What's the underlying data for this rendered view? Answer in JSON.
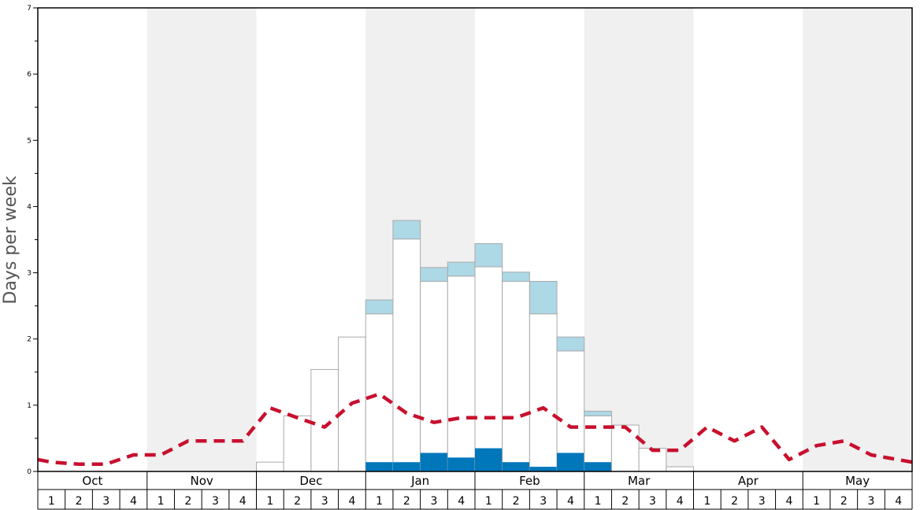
{
  "chart_data": {
    "type": "bar",
    "ylabel": "Days per week",
    "ylim": [
      0,
      7
    ],
    "y_ticks": [
      "0",
      "1",
      "2",
      "3",
      "4",
      "5",
      "6",
      "7"
    ],
    "months": [
      "Oct",
      "Nov",
      "Dec",
      "Jan",
      "Feb",
      "Mar",
      "Apr",
      "May"
    ],
    "week_labels": [
      "1",
      "2",
      "3",
      "4"
    ],
    "shaded_months": [
      "Nov",
      "Jan",
      "Mar",
      "May"
    ],
    "series": [
      {
        "style": "white-bar",
        "values": [
          0,
          0,
          0,
          0,
          0,
          0,
          0,
          0,
          0.14,
          0.84,
          1.54,
          2.03,
          2.38,
          3.51,
          2.87,
          2.95,
          3.09,
          2.87,
          2.38,
          1.82,
          0.84,
          0.7,
          0.35,
          0.07,
          0,
          0,
          0,
          0,
          0,
          0,
          0,
          0
        ]
      },
      {
        "style": "light-blue-bar",
        "values": [
          0,
          0,
          0,
          0,
          0,
          0,
          0,
          0,
          0,
          0,
          0,
          0,
          0.21,
          0.28,
          0.21,
          0.21,
          0.35,
          0.14,
          0.49,
          0.21,
          0.07,
          0,
          0,
          0,
          0,
          0,
          0,
          0,
          0,
          0,
          0,
          0
        ]
      },
      {
        "style": "dark-blue-bar",
        "values": [
          0,
          0,
          0,
          0,
          0,
          0,
          0,
          0,
          0,
          0,
          0,
          0,
          0.14,
          0.14,
          0.28,
          0.21,
          0.35,
          0.14,
          0.07,
          0.28,
          0.14,
          0,
          0,
          0,
          0,
          0,
          0,
          0,
          0,
          0,
          0,
          0
        ]
      },
      {
        "style": "red-dashed-line",
        "values": [
          0.18,
          0.14,
          0.11,
          0.11,
          0.25,
          0.25,
          0.46,
          0.46,
          0.46,
          0.96,
          0.81,
          0.67,
          1.03,
          1.17,
          0.88,
          0.74,
          0.81,
          0.81,
          0.81,
          0.96,
          0.67,
          0.67,
          0.67,
          0.32,
          0.32,
          0.67,
          0.46,
          0.67,
          0.18,
          0.39,
          0.46,
          0.25,
          0.14
        ]
      }
    ],
    "colors": {
      "shade": "#f0f0f0",
      "white_bar": "#ffffff",
      "bar_stroke": "#aaaaaa",
      "light_blue": "#add8e6",
      "dark_blue": "#0077bb",
      "line": "#c8102e"
    },
    "grid": false
  }
}
